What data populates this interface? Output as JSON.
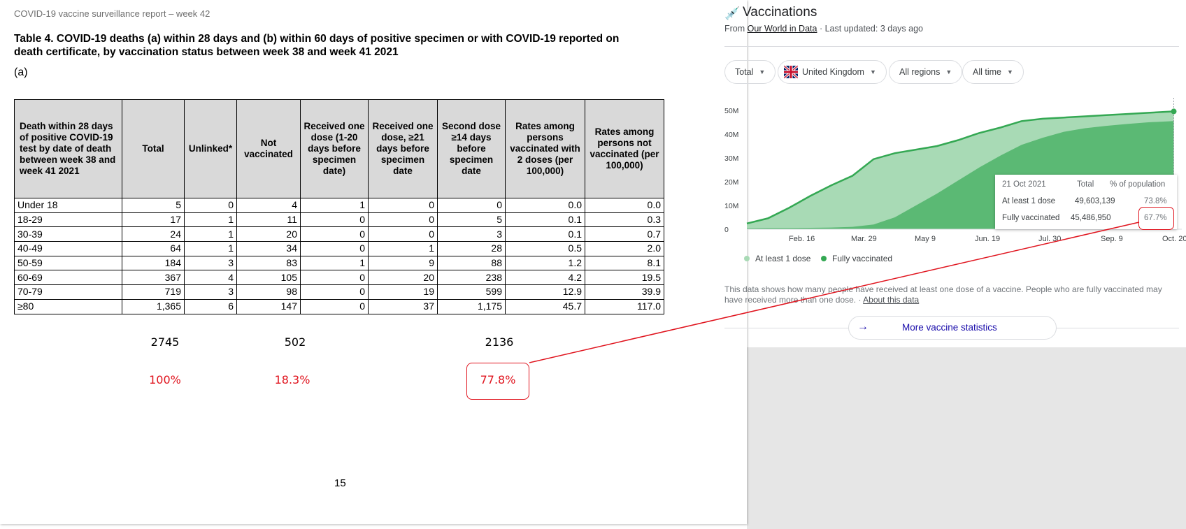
{
  "report": {
    "header": "COVID-19 vaccine surveillance report – week 42",
    "table_title": "Table 4. COVID-19 deaths (a) within 28 days and (b) within 60 days of positive specimen or with COVID-19 reported on death certificate, by vaccination status between week 38 and week 41 2021",
    "sub": "(a)",
    "columns": [
      "Death within 28 days of positive COVID-19 test by date of death between week 38 and week 41 2021",
      "Total",
      "Unlinked*",
      "Not vaccinated",
      "Received one dose (1-20 days before specimen date)",
      "Received one dose, ≥21 days before specimen date",
      "Second dose ≥14 days before specimen date",
      "Rates among persons vaccinated with 2 doses (per 100,000)",
      "Rates among persons not vaccinated (per 100,000)"
    ],
    "rows": [
      [
        "Under 18",
        "5",
        "0",
        "4",
        "1",
        "0",
        "0",
        "0.0",
        "0.0"
      ],
      [
        "18-29",
        "17",
        "1",
        "11",
        "0",
        "0",
        "5",
        "0.1",
        "0.3"
      ],
      [
        "30-39",
        "24",
        "1",
        "20",
        "0",
        "0",
        "3",
        "0.1",
        "0.7"
      ],
      [
        "40-49",
        "64",
        "1",
        "34",
        "0",
        "1",
        "28",
        "0.5",
        "2.0"
      ],
      [
        "50-59",
        "184",
        "3",
        "83",
        "1",
        "9",
        "88",
        "1.2",
        "8.1"
      ],
      [
        "60-69",
        "367",
        "4",
        "105",
        "0",
        "20",
        "238",
        "4.2",
        "19.5"
      ],
      [
        "70-79",
        "719",
        "3",
        "98",
        "0",
        "19",
        "599",
        "12.9",
        "39.9"
      ],
      [
        "≥80",
        "1,365",
        "6",
        "147",
        "0",
        "37",
        "1,175",
        "45.7",
        "117.0"
      ]
    ],
    "summary_counts": {
      "total": "2745",
      "not_vaccinated": "502",
      "second_dose": "2136"
    },
    "summary_pcts": {
      "total": "100%",
      "not_vaccinated": "18.3%",
      "second_dose": "77.8%"
    },
    "page_number": "15"
  },
  "vaccinations": {
    "title": "Vaccinations",
    "source_prefix": "From",
    "source_link": "Our World in Data",
    "updated": "· Last updated: 3 days ago",
    "filters": [
      {
        "label": "Total"
      },
      {
        "label": "United Kingdom"
      },
      {
        "label": "All regions"
      },
      {
        "label": "All time"
      }
    ],
    "legend": {
      "series1": "At least 1 dose",
      "series2": "Fully vaccinated"
    },
    "tooltip": {
      "date": "21 Oct 2021",
      "col_total": "Total",
      "col_pct": "% of population",
      "row1_label": "At least 1 dose",
      "row1_total": "49,603,139",
      "row1_pct": "73.8%",
      "row2_label": "Fully vaccinated",
      "row2_total": "45,486,950",
      "row2_pct": "67.7%"
    },
    "note": "This data shows how many people have received at least one dose of a vaccine. People who are fully vaccinated may have received more than one dose.",
    "note_sep": "·",
    "about_link": "About this data",
    "more_button": "More vaccine statistics",
    "colors": {
      "dose1": "#a8dab5",
      "full": "#5bb974",
      "line": "#34a853",
      "highlight": "#e0141e"
    }
  },
  "chart_data": {
    "type": "area",
    "title": "Vaccinations",
    "x_unit": "weeks since 10 Jan 2021",
    "x": [
      0,
      2,
      4,
      6,
      8,
      10,
      12,
      14,
      16,
      18,
      20,
      22,
      24,
      26,
      28,
      30,
      32,
      34,
      36,
      38,
      40.4
    ],
    "series": [
      {
        "name": "At least 1 dose",
        "values": [
          2.4,
          4.6,
          9.0,
          14.0,
          18.5,
          22.5,
          29.5,
          32.0,
          33.5,
          35.0,
          37.5,
          40.5,
          42.8,
          45.5,
          46.5,
          47.0,
          47.5,
          48.0,
          48.5,
          49.0,
          49.6
        ]
      },
      {
        "name": "Fully vaccinated",
        "values": [
          0.4,
          0.5,
          0.5,
          0.6,
          0.7,
          1.0,
          2.0,
          5.0,
          10.0,
          15.0,
          20.5,
          26.0,
          31.0,
          35.5,
          38.5,
          41.0,
          42.5,
          43.5,
          44.3,
          45.0,
          45.5
        ]
      }
    ],
    "ylim": [
      0,
      50
    ],
    "y_unit": "millions",
    "y_ticks": [
      "0",
      "10M",
      "20M",
      "30M",
      "40M",
      "50M"
    ],
    "y_tick_values": [
      0,
      10,
      20,
      30,
      40,
      50
    ],
    "x_ticks": [
      "Feb. 16",
      "Mar. 29",
      "May 9",
      "Jun. 19",
      "Jul. 30",
      "Sep. 9",
      "Oct. 20"
    ],
    "x_tick_values": [
      5.29,
      11.14,
      17.0,
      22.86,
      28.71,
      34.57,
      40.43
    ],
    "xlim": [
      0,
      40.5
    ],
    "grid": false,
    "legend": "bottom-left"
  }
}
